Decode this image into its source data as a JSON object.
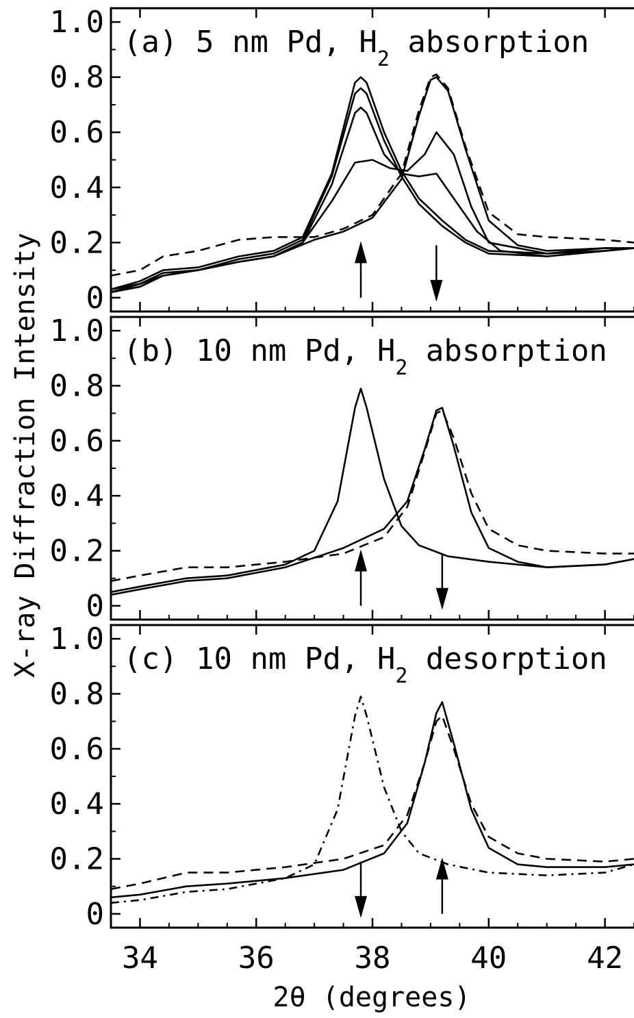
{
  "chart_data": {
    "type": "line",
    "ylabel": "X-ray Diffraction Intensity",
    "xlabel": "2θ (degrees)",
    "xlim": [
      33.5,
      42.5
    ],
    "ylim": [
      -0.05,
      1.05
    ],
    "xticks": [
      34,
      36,
      38,
      40,
      42
    ],
    "xtick_labels": [
      "34",
      "36",
      "38",
      "40",
      "42"
    ],
    "yticks": [
      0,
      0.2,
      0.4,
      0.6,
      0.8,
      1.0
    ],
    "ytick_labels": [
      "0",
      "0.2",
      "0.4",
      "0.6",
      "0.8",
      "1.0"
    ],
    "panels": [
      {
        "label": "(a)",
        "title_main": "5 nm Pd, H",
        "title_sub": "2",
        "title_end": " absorption",
        "series": [
          {
            "style": "dashed",
            "x": [
              33.5,
              34.0,
              34.4,
              35.0,
              35.7,
              36.3,
              37.0,
              37.5,
              38.0,
              38.5,
              38.8,
              39.0,
              39.1,
              39.3,
              39.6,
              40.0,
              40.5,
              41.0,
              42.0,
              42.5
            ],
            "y": [
              0.08,
              0.1,
              0.15,
              0.17,
              0.21,
              0.22,
              0.22,
              0.25,
              0.3,
              0.45,
              0.68,
              0.8,
              0.81,
              0.76,
              0.55,
              0.31,
              0.23,
              0.22,
              0.21,
              0.2
            ]
          },
          {
            "style": "solid",
            "x": [
              33.5,
              34.0,
              34.4,
              35.0,
              35.7,
              36.3,
              36.8,
              37.3,
              37.7,
              37.8,
              37.9,
              38.2,
              38.5,
              38.8,
              39.2,
              39.6,
              40.0,
              41.0,
              42.0,
              42.5
            ],
            "y": [
              0.03,
              0.06,
              0.1,
              0.11,
              0.15,
              0.17,
              0.22,
              0.45,
              0.78,
              0.8,
              0.78,
              0.6,
              0.46,
              0.36,
              0.28,
              0.21,
              0.17,
              0.16,
              0.18,
              0.18
            ]
          },
          {
            "style": "solid",
            "x": [
              33.5,
              34.0,
              34.4,
              35.0,
              35.7,
              36.3,
              36.8,
              37.3,
              37.7,
              37.8,
              37.9,
              38.2,
              38.5,
              38.8,
              39.2,
              39.6,
              40.0,
              41.0,
              42.0,
              42.5
            ],
            "y": [
              0.03,
              0.05,
              0.09,
              0.1,
              0.14,
              0.16,
              0.21,
              0.44,
              0.74,
              0.76,
              0.74,
              0.57,
              0.44,
              0.34,
              0.26,
              0.2,
              0.16,
              0.15,
              0.17,
              0.18
            ]
          },
          {
            "style": "solid",
            "x": [
              33.5,
              34.0,
              34.4,
              35.0,
              35.7,
              36.3,
              36.8,
              37.3,
              37.7,
              37.8,
              37.9,
              38.2,
              38.5,
              38.8,
              39.1,
              39.5,
              39.8,
              40.2,
              41.0,
              42.0,
              42.5
            ],
            "y": [
              0.02,
              0.05,
              0.08,
              0.1,
              0.13,
              0.15,
              0.2,
              0.41,
              0.67,
              0.69,
              0.67,
              0.52,
              0.45,
              0.44,
              0.45,
              0.33,
              0.24,
              0.17,
              0.15,
              0.17,
              0.18
            ]
          },
          {
            "style": "solid",
            "x": [
              33.5,
              34.0,
              34.4,
              35.0,
              35.7,
              36.3,
              36.8,
              37.3,
              37.7,
              38.0,
              38.3,
              38.6,
              38.9,
              39.1,
              39.4,
              39.7,
              40.0,
              41.0,
              42.0,
              42.5
            ],
            "y": [
              0.02,
              0.04,
              0.08,
              0.1,
              0.13,
              0.15,
              0.2,
              0.35,
              0.49,
              0.5,
              0.47,
              0.46,
              0.52,
              0.6,
              0.52,
              0.33,
              0.2,
              0.16,
              0.17,
              0.18
            ]
          },
          {
            "style": "solid",
            "x": [
              33.5,
              34.0,
              34.4,
              35.0,
              35.7,
              36.3,
              37.0,
              37.5,
              38.0,
              38.5,
              38.8,
              39.0,
              39.1,
              39.3,
              39.6,
              40.0,
              40.5,
              41.0,
              42.0,
              42.5
            ],
            "y": [
              0.02,
              0.04,
              0.08,
              0.1,
              0.13,
              0.15,
              0.21,
              0.24,
              0.29,
              0.43,
              0.66,
              0.79,
              0.8,
              0.75,
              0.54,
              0.28,
              0.19,
              0.17,
              0.18,
              0.18
            ]
          }
        ],
        "arrows": [
          {
            "x": 37.8,
            "dir": "up"
          },
          {
            "x": 39.1,
            "dir": "down"
          }
        ]
      },
      {
        "label": "(b)",
        "title_main": "10 nm Pd, H",
        "title_sub": "2",
        "title_end": " absorption",
        "series": [
          {
            "style": "dashed",
            "x": [
              33.5,
              34.0,
              34.8,
              35.5,
              36.5,
              37.5,
              38.2,
              38.6,
              38.9,
              39.1,
              39.2,
              39.4,
              39.7,
              40.0,
              40.5,
              41.0,
              42.0,
              42.5
            ],
            "y": [
              0.09,
              0.11,
              0.14,
              0.14,
              0.16,
              0.19,
              0.25,
              0.36,
              0.56,
              0.7,
              0.71,
              0.61,
              0.41,
              0.28,
              0.22,
              0.2,
              0.19,
              0.19
            ]
          },
          {
            "style": "solid",
            "x": [
              33.5,
              34.0,
              34.8,
              35.5,
              36.5,
              37.0,
              37.4,
              37.7,
              37.8,
              37.9,
              38.2,
              38.5,
              38.8,
              39.3,
              40.0,
              41.0,
              42.0,
              42.5
            ],
            "y": [
              0.05,
              0.07,
              0.1,
              0.11,
              0.15,
              0.2,
              0.38,
              0.72,
              0.79,
              0.72,
              0.46,
              0.29,
              0.22,
              0.18,
              0.16,
              0.14,
              0.15,
              0.17
            ]
          },
          {
            "style": "solid",
            "x": [
              33.5,
              34.0,
              34.8,
              35.5,
              36.5,
              37.5,
              38.2,
              38.6,
              38.9,
              39.1,
              39.2,
              39.4,
              39.7,
              40.0,
              40.5,
              41.0,
              42.0,
              42.5
            ],
            "y": [
              0.04,
              0.06,
              0.09,
              0.1,
              0.14,
              0.21,
              0.28,
              0.38,
              0.57,
              0.71,
              0.72,
              0.58,
              0.34,
              0.21,
              0.16,
              0.14,
              0.15,
              0.17
            ]
          }
        ],
        "arrows": [
          {
            "x": 37.8,
            "dir": "up"
          },
          {
            "x": 39.2,
            "dir": "down"
          }
        ]
      },
      {
        "label": "(c)",
        "title_main": "10 nm Pd, H",
        "title_sub": "2",
        "title_end": " desorption",
        "series": [
          {
            "style": "dashdot",
            "x": [
              33.5,
              34.0,
              34.8,
              35.5,
              36.5,
              37.0,
              37.4,
              37.7,
              37.8,
              37.9,
              38.2,
              38.5,
              38.8,
              39.3,
              40.0,
              41.0,
              42.0,
              42.5
            ],
            "y": [
              0.04,
              0.05,
              0.08,
              0.09,
              0.13,
              0.18,
              0.38,
              0.72,
              0.79,
              0.72,
              0.46,
              0.3,
              0.22,
              0.18,
              0.15,
              0.14,
              0.15,
              0.18
            ]
          },
          {
            "style": "dashed",
            "x": [
              33.5,
              34.0,
              34.8,
              35.5,
              36.5,
              37.5,
              38.2,
              38.6,
              38.9,
              39.1,
              39.2,
              39.4,
              39.7,
              40.0,
              40.5,
              41.0,
              42.0,
              42.5
            ],
            "y": [
              0.09,
              0.11,
              0.15,
              0.15,
              0.17,
              0.2,
              0.25,
              0.36,
              0.55,
              0.7,
              0.72,
              0.6,
              0.4,
              0.28,
              0.22,
              0.2,
              0.19,
              0.2
            ]
          },
          {
            "style": "solid",
            "x": [
              33.5,
              34.0,
              34.8,
              35.5,
              36.5,
              37.5,
              38.2,
              38.6,
              38.9,
              39.1,
              39.2,
              39.4,
              39.7,
              40.0,
              40.5,
              41.0,
              42.0,
              42.5
            ],
            "y": [
              0.06,
              0.07,
              0.1,
              0.11,
              0.13,
              0.16,
              0.22,
              0.33,
              0.55,
              0.73,
              0.77,
              0.62,
              0.38,
              0.24,
              0.18,
              0.17,
              0.17,
              0.18
            ]
          }
        ],
        "arrows": [
          {
            "x": 37.8,
            "dir": "down"
          },
          {
            "x": 39.2,
            "dir": "up"
          }
        ]
      }
    ]
  }
}
